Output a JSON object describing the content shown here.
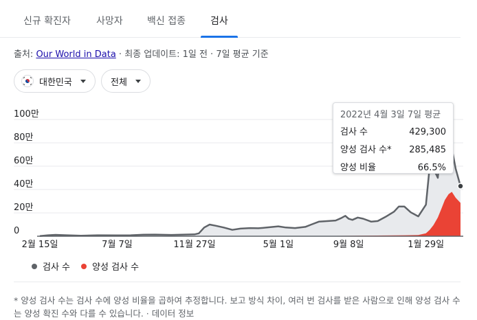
{
  "tabs": [
    {
      "label": "신규 확진자",
      "active": false
    },
    {
      "label": "사망자",
      "active": false
    },
    {
      "label": "백신 접종",
      "active": false
    },
    {
      "label": "검사",
      "active": true
    }
  ],
  "source": {
    "prefix": "출처: ",
    "link_text": "Our World in Data",
    "suffix": " · 최종 업데이트: 1일 전 · 7일 평균 기준"
  },
  "filters": {
    "country": {
      "label": "대한민국",
      "icon": "korea-flag-icon"
    },
    "range": {
      "label": "전체"
    }
  },
  "tooltip": {
    "title": "2022년 4월 3일 7일 평균",
    "rows": [
      {
        "label": "검사 수",
        "value": "429,300"
      },
      {
        "label": "양성 검사 수*",
        "value": "285,485"
      },
      {
        "label": "양성 비율",
        "value": "66.5%"
      }
    ]
  },
  "legend": [
    {
      "label": "검사 수",
      "color": "#5f6368"
    },
    {
      "label": "양성 검사 수",
      "color": "#ea4335"
    }
  ],
  "footnote": {
    "text": "* 양성 검사 수는 검사 수에 양성 비율을 곱하여 추정합니다. 보고 방식 차이, 여러 번 검사를 받은 사람으로 인해 양성 검사 수는 양성 확진 수와 다를 수 있습니다. · ",
    "link": "데이터 정보"
  },
  "colors": {
    "accent": "#1a73e8",
    "tests": "#5f6368",
    "positive": "#ea4335",
    "fill": "#e8eaed"
  },
  "chart_data": {
    "type": "area",
    "y_tick_labels": [
      "0",
      "20만",
      "40만",
      "60만",
      "80만",
      "100만"
    ],
    "y_tick_values": [
      0,
      200000,
      400000,
      600000,
      800000,
      1000000
    ],
    "ylim": [
      0,
      1000000
    ],
    "x_tick_labels": [
      "2월 15일",
      "7월 7일",
      "11월 27일",
      "5월 1일",
      "9월 8일",
      "1월 29일"
    ],
    "x_tick_values": [
      "2020-02-15",
      "2020-07-07",
      "2020-11-27",
      "2021-05-01",
      "2021-09-08",
      "2022-01-29"
    ],
    "series": [
      {
        "name": "검사 수",
        "points": [
          [
            "2020-02-15",
            2000
          ],
          [
            "2020-03-01",
            8000
          ],
          [
            "2020-03-15",
            12000
          ],
          [
            "2020-04-01",
            9000
          ],
          [
            "2020-05-01",
            5000
          ],
          [
            "2020-06-01",
            8000
          ],
          [
            "2020-07-07",
            7000
          ],
          [
            "2020-08-01",
            8000
          ],
          [
            "2020-08-25",
            13000
          ],
          [
            "2020-09-15",
            14000
          ],
          [
            "2020-10-15",
            11000
          ],
          [
            "2020-11-27",
            16000
          ],
          [
            "2020-12-05",
            25000
          ],
          [
            "2020-12-15",
            75000
          ],
          [
            "2020-12-25",
            100000
          ],
          [
            "2021-01-05",
            90000
          ],
          [
            "2021-01-20",
            75000
          ],
          [
            "2021-02-05",
            55000
          ],
          [
            "2021-02-20",
            65000
          ],
          [
            "2021-03-10",
            70000
          ],
          [
            "2021-03-25",
            68000
          ],
          [
            "2021-04-10",
            75000
          ],
          [
            "2021-05-01",
            85000
          ],
          [
            "2021-05-15",
            75000
          ],
          [
            "2021-06-01",
            70000
          ],
          [
            "2021-06-20",
            80000
          ],
          [
            "2021-07-01",
            100000
          ],
          [
            "2021-07-15",
            125000
          ],
          [
            "2021-08-01",
            130000
          ],
          [
            "2021-08-15",
            135000
          ],
          [
            "2021-08-25",
            155000
          ],
          [
            "2021-09-02",
            175000
          ],
          [
            "2021-09-08",
            150000
          ],
          [
            "2021-09-15",
            140000
          ],
          [
            "2021-09-25",
            160000
          ],
          [
            "2021-10-05",
            150000
          ],
          [
            "2021-10-20",
            125000
          ],
          [
            "2021-11-01",
            130000
          ],
          [
            "2021-11-15",
            165000
          ],
          [
            "2021-12-01",
            210000
          ],
          [
            "2021-12-10",
            255000
          ],
          [
            "2021-12-20",
            255000
          ],
          [
            "2022-01-01",
            205000
          ],
          [
            "2022-01-15",
            170000
          ],
          [
            "2022-01-29",
            270000
          ],
          [
            "2022-02-05",
            600000
          ],
          [
            "2022-02-12",
            580000
          ],
          [
            "2022-02-20",
            500000
          ],
          [
            "2022-02-25",
            750000
          ],
          [
            "2022-03-01",
            780000
          ],
          [
            "2022-03-05",
            700000
          ],
          [
            "2022-03-12",
            850000
          ],
          [
            "2022-03-18",
            750000
          ],
          [
            "2022-03-25",
            580000
          ],
          [
            "2022-04-03",
            429300
          ]
        ]
      },
      {
        "name": "양성 검사 수",
        "points": [
          [
            "2020-02-15",
            0
          ],
          [
            "2021-01-05",
            2000
          ],
          [
            "2021-08-15",
            3000
          ],
          [
            "2021-12-20",
            8000
          ],
          [
            "2022-01-15",
            10000
          ],
          [
            "2022-01-29",
            25000
          ],
          [
            "2022-02-05",
            55000
          ],
          [
            "2022-02-12",
            95000
          ],
          [
            "2022-02-20",
            160000
          ],
          [
            "2022-02-27",
            240000
          ],
          [
            "2022-03-05",
            310000
          ],
          [
            "2022-03-12",
            360000
          ],
          [
            "2022-03-18",
            380000
          ],
          [
            "2022-03-25",
            330000
          ],
          [
            "2022-04-03",
            285485
          ]
        ]
      }
    ],
    "highlight": {
      "date": "2022-04-03",
      "value": 429300
    }
  }
}
